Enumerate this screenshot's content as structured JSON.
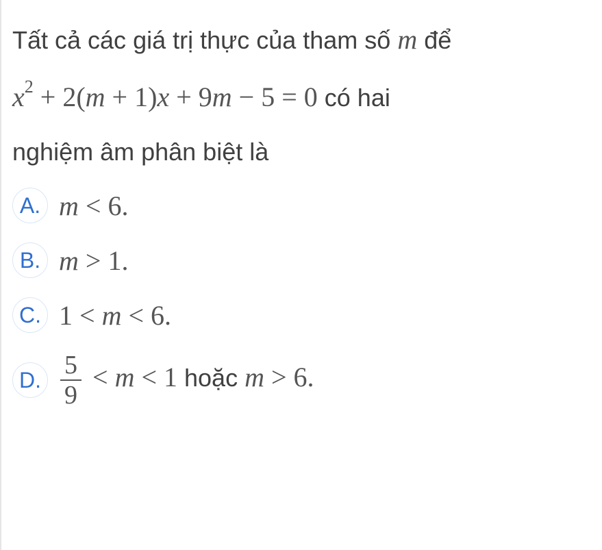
{
  "question": {
    "line1_pre": "Tất cả các giá trị thực của tham số ",
    "line1_var": "m",
    "line1_post": " để",
    "eq_x": "x",
    "eq_sup": "2",
    "eq_plus1": " + 2(",
    "eq_m1": "m",
    "eq_plus2": " + 1)",
    "eq_x2": "x",
    "eq_plus3": " + 9",
    "eq_m2": "m",
    "eq_tail": " − 5 = 0",
    "eq_sans": " có hai",
    "line3": "nghiệm âm phân biệt là"
  },
  "options": {
    "A": {
      "letter": "A.",
      "var": "m",
      "rel": " < 6."
    },
    "B": {
      "letter": "B.",
      "var": "m",
      "rel": " > 1."
    },
    "C": {
      "letter": "C.",
      "pre": "1 < ",
      "var": "m",
      "rel": " < 6."
    },
    "D": {
      "letter": "D.",
      "frac_num": "5",
      "frac_den": "9",
      "mid1": " < ",
      "var1": "m",
      "mid2": " < 1",
      "sans": " hoặc ",
      "var2": "m",
      "tail": " > 6."
    }
  },
  "colors": {
    "text": "#404040",
    "math": "#555555",
    "option_letter": "#2f6fd0",
    "option_circle": "#d9e6f7",
    "left_border": "#e5e5e5",
    "background": "#ffffff"
  }
}
